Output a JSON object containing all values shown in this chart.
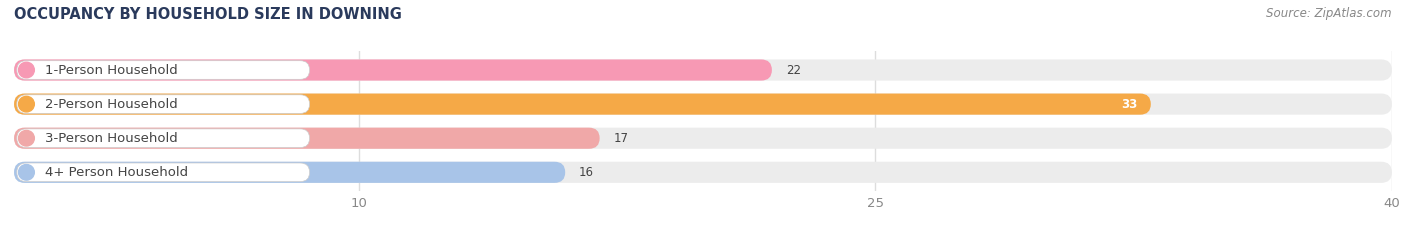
{
  "title": "OCCUPANCY BY HOUSEHOLD SIZE IN DOWNING",
  "source": "Source: ZipAtlas.com",
  "categories": [
    "1-Person Household",
    "2-Person Household",
    "3-Person Household",
    "4+ Person Household"
  ],
  "values": [
    22,
    33,
    17,
    16
  ],
  "bar_colors": [
    "#f799b4",
    "#f5a947",
    "#f0a8a8",
    "#a8c4e8"
  ],
  "xlim_max": 40,
  "xticks": [
    10,
    25,
    40
  ],
  "title_fontsize": 10.5,
  "label_fontsize": 9.5,
  "value_fontsize": 8.5,
  "source_fontsize": 8.5,
  "background_color": "#ffffff",
  "bar_bg_color": "#ececec",
  "title_color": "#2a3a5c",
  "label_color": "#444444",
  "tick_color": "#888888",
  "source_color": "#888888",
  "grid_color": "#dddddd"
}
